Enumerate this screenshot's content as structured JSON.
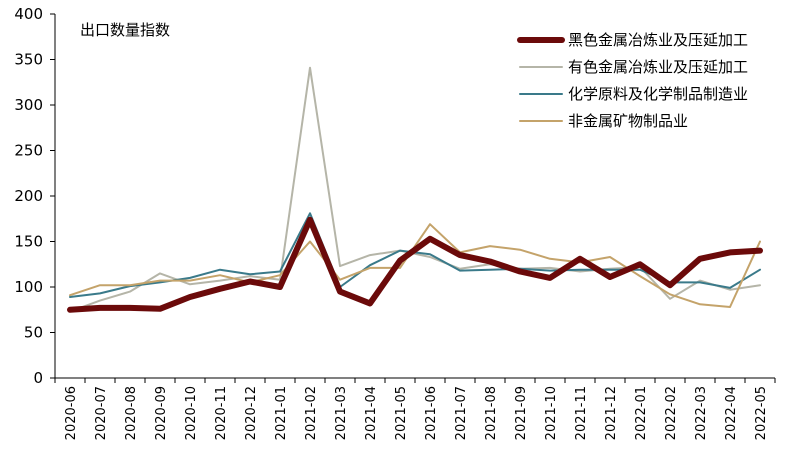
{
  "chart_data": {
    "type": "line",
    "subtitle": "出口数量指数",
    "ylim": [
      0,
      400
    ],
    "yticks": [
      0,
      50,
      100,
      150,
      200,
      250,
      300,
      350,
      400
    ],
    "grid": false,
    "legend_position": "top-right",
    "categories": [
      "2020-06",
      "2020-07",
      "2020-08",
      "2020-09",
      "2020-10",
      "2020-11",
      "2020-12",
      "2021-01",
      "2021-02",
      "2021-03",
      "2021-04",
      "2021-05",
      "2021-06",
      "2021-07",
      "2021-08",
      "2021-09",
      "2021-10",
      "2021-11",
      "2021-12",
      "2022-01",
      "2022-02",
      "2022-03",
      "2022-04",
      "2022-05"
    ],
    "series": [
      {
        "name": "黑色金属冶炼业及压延加工",
        "color": "#6b0a0a",
        "width": 6,
        "values": [
          75,
          77,
          77,
          76,
          89,
          98,
          106,
          100,
          174,
          95,
          82,
          129,
          153,
          135,
          128,
          117,
          110,
          131,
          111,
          125,
          102,
          131,
          138,
          140
        ]
      },
      {
        "name": "有色金属冶炼业及压延加工",
        "color": "#b5b5a8",
        "width": 2,
        "values": [
          73,
          85,
          95,
          115,
          103,
          107,
          112,
          108,
          341,
          123,
          135,
          140,
          133,
          120,
          125,
          120,
          121,
          117,
          120,
          122,
          87,
          107,
          97,
          102
        ]
      },
      {
        "name": "化学原料及化学制品制造业",
        "color": "#3a7a8a",
        "width": 2,
        "values": [
          89,
          93,
          101,
          105,
          110,
          119,
          114,
          117,
          181,
          100,
          124,
          140,
          136,
          118,
          119,
          120,
          118,
          119,
          119,
          119,
          105,
          105,
          99,
          119
        ]
      },
      {
        "name": "非金属矿物制品业",
        "color": "#c4a36a",
        "width": 2,
        "values": [
          91,
          102,
          102,
          107,
          107,
          113,
          105,
          113,
          150,
          108,
          121,
          121,
          169,
          138,
          145,
          141,
          131,
          127,
          133,
          112,
          92,
          81,
          78,
          150
        ]
      }
    ]
  }
}
